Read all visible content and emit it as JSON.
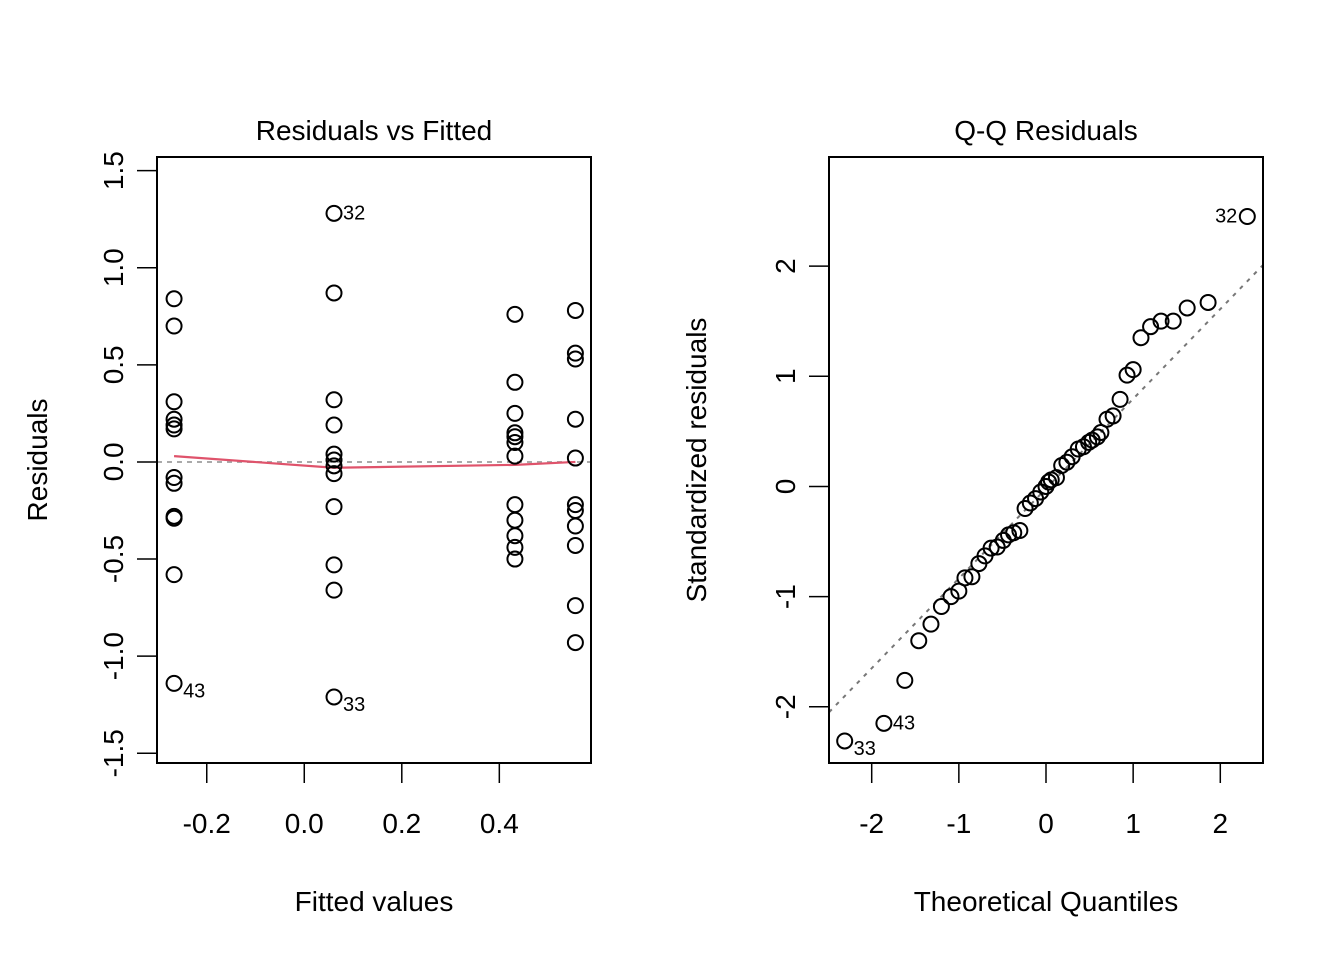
{
  "chart_data": [
    {
      "type": "scatter",
      "title": "Residuals vs Fitted",
      "xlabel": "Fitted values",
      "ylabel": "Residuals",
      "xlim": [
        -0.302,
        0.588
      ],
      "ylim": [
        -1.55,
        1.57
      ],
      "xticks": [
        -0.2,
        0.0,
        0.2,
        0.4
      ],
      "xtick_labels": [
        "-0.2",
        "0.0",
        "0.2",
        "0.4"
      ],
      "yticks": [
        -1.5,
        -1.0,
        -0.5,
        0.0,
        0.5,
        1.0,
        1.5
      ],
      "ytick_labels": [
        "-1.5",
        "-1.0",
        "-0.5",
        "0.0",
        "0.5",
        "1.0",
        "1.5"
      ],
      "grid": false,
      "reference_line": {
        "y": 0,
        "style": "dotted",
        "color": "#aaaaaa"
      },
      "smoother": {
        "color": "#DF536B",
        "x": [
          -0.267,
          0.061,
          0.432,
          0.556
        ],
        "y": [
          0.03,
          -0.03,
          -0.015,
          0.0
        ]
      },
      "points": [
        {
          "x": -0.267,
          "y": 0.84
        },
        {
          "x": -0.267,
          "y": 0.7
        },
        {
          "x": -0.267,
          "y": 0.31
        },
        {
          "x": -0.267,
          "y": 0.22
        },
        {
          "x": -0.267,
          "y": 0.19
        },
        {
          "x": -0.267,
          "y": 0.17
        },
        {
          "x": -0.267,
          "y": -0.08
        },
        {
          "x": -0.267,
          "y": -0.11
        },
        {
          "x": -0.267,
          "y": -0.28
        },
        {
          "x": -0.267,
          "y": -0.29
        },
        {
          "x": -0.267,
          "y": -0.58
        },
        {
          "x": -0.267,
          "y": -1.14,
          "label": "43"
        },
        {
          "x": 0.061,
          "y": 1.28,
          "label": "32"
        },
        {
          "x": 0.061,
          "y": 0.87
        },
        {
          "x": 0.061,
          "y": 0.32
        },
        {
          "x": 0.061,
          "y": 0.19
        },
        {
          "x": 0.061,
          "y": 0.04
        },
        {
          "x": 0.061,
          "y": 0.01
        },
        {
          "x": 0.061,
          "y": -0.02
        },
        {
          "x": 0.061,
          "y": -0.06
        },
        {
          "x": 0.061,
          "y": -0.23
        },
        {
          "x": 0.061,
          "y": -0.53
        },
        {
          "x": 0.061,
          "y": -0.66
        },
        {
          "x": 0.061,
          "y": -1.21,
          "label": "33"
        },
        {
          "x": 0.432,
          "y": 0.76
        },
        {
          "x": 0.432,
          "y": 0.41
        },
        {
          "x": 0.432,
          "y": 0.25
        },
        {
          "x": 0.432,
          "y": 0.15
        },
        {
          "x": 0.432,
          "y": 0.13
        },
        {
          "x": 0.432,
          "y": 0.1
        },
        {
          "x": 0.432,
          "y": 0.03
        },
        {
          "x": 0.432,
          "y": -0.22
        },
        {
          "x": 0.432,
          "y": -0.3
        },
        {
          "x": 0.432,
          "y": -0.38
        },
        {
          "x": 0.432,
          "y": -0.44
        },
        {
          "x": 0.432,
          "y": -0.5
        },
        {
          "x": 0.556,
          "y": 0.78
        },
        {
          "x": 0.556,
          "y": 0.56
        },
        {
          "x": 0.556,
          "y": 0.53
        },
        {
          "x": 0.556,
          "y": 0.22
        },
        {
          "x": 0.556,
          "y": 0.02
        },
        {
          "x": 0.556,
          "y": -0.22
        },
        {
          "x": 0.556,
          "y": -0.25
        },
        {
          "x": 0.556,
          "y": -0.33
        },
        {
          "x": 0.556,
          "y": -0.43
        },
        {
          "x": 0.556,
          "y": -0.74
        },
        {
          "x": 0.556,
          "y": -0.93
        }
      ]
    },
    {
      "type": "scatter",
      "title": "Q-Q Residuals",
      "xlabel": "Theoretical Quantiles",
      "ylabel": "Standardized residuals",
      "xlim": [
        -2.49,
        2.49
      ],
      "ylim": [
        -2.51,
        2.99
      ],
      "xticks": [
        -2,
        -1,
        0,
        1,
        2
      ],
      "xtick_labels": [
        "-2",
        "-1",
        "0",
        "1",
        "2"
      ],
      "yticks": [
        -2,
        -1,
        0,
        1,
        2
      ],
      "ytick_labels": [
        "-2",
        "-1",
        "0",
        "1",
        "2"
      ],
      "grid": false,
      "qqline": {
        "slope": 0.815,
        "intercept": -0.02,
        "style": "dotted",
        "color": "#777777"
      },
      "points": [
        {
          "x": -2.31,
          "y": -2.31,
          "label": "33"
        },
        {
          "x": -1.86,
          "y": -2.15,
          "label": "43"
        },
        {
          "x": -1.62,
          "y": -1.76
        },
        {
          "x": -1.46,
          "y": -1.4
        },
        {
          "x": -1.32,
          "y": -1.25
        },
        {
          "x": -1.2,
          "y": -1.09
        },
        {
          "x": -1.09,
          "y": -1.0
        },
        {
          "x": -1.0,
          "y": -0.95
        },
        {
          "x": -0.93,
          "y": -0.83
        },
        {
          "x": -0.85,
          "y": -0.82
        },
        {
          "x": -0.77,
          "y": -0.7
        },
        {
          "x": -0.7,
          "y": -0.63
        },
        {
          "x": -0.63,
          "y": -0.56
        },
        {
          "x": -0.56,
          "y": -0.55
        },
        {
          "x": -0.49,
          "y": -0.49
        },
        {
          "x": -0.43,
          "y": -0.44
        },
        {
          "x": -0.37,
          "y": -0.42
        },
        {
          "x": -0.3,
          "y": -0.4
        },
        {
          "x": -0.24,
          "y": -0.2
        },
        {
          "x": -0.18,
          "y": -0.15
        },
        {
          "x": -0.12,
          "y": -0.11
        },
        {
          "x": -0.06,
          "y": -0.05
        },
        {
          "x": 0.0,
          "y": 0.0
        },
        {
          "x": 0.03,
          "y": 0.04
        },
        {
          "x": 0.06,
          "y": 0.06
        },
        {
          "x": 0.12,
          "y": 0.08
        },
        {
          "x": 0.18,
          "y": 0.19
        },
        {
          "x": 0.24,
          "y": 0.22
        },
        {
          "x": 0.3,
          "y": 0.27
        },
        {
          "x": 0.37,
          "y": 0.34
        },
        {
          "x": 0.43,
          "y": 0.36
        },
        {
          "x": 0.49,
          "y": 0.4
        },
        {
          "x": 0.53,
          "y": 0.42
        },
        {
          "x": 0.59,
          "y": 0.45
        },
        {
          "x": 0.63,
          "y": 0.49
        },
        {
          "x": 0.7,
          "y": 0.61
        },
        {
          "x": 0.77,
          "y": 0.64
        },
        {
          "x": 0.85,
          "y": 0.79
        },
        {
          "x": 0.93,
          "y": 1.01
        },
        {
          "x": 1.0,
          "y": 1.06
        },
        {
          "x": 1.09,
          "y": 1.35
        },
        {
          "x": 1.2,
          "y": 1.45
        },
        {
          "x": 1.32,
          "y": 1.5
        },
        {
          "x": 1.46,
          "y": 1.5
        },
        {
          "x": 1.62,
          "y": 1.62
        },
        {
          "x": 1.86,
          "y": 1.67
        },
        {
          "x": 2.31,
          "y": 2.45,
          "label": "32"
        }
      ]
    }
  ]
}
